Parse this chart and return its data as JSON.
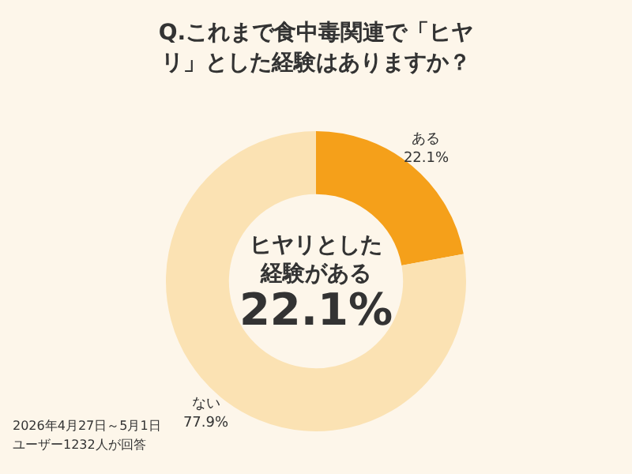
{
  "chart_data": {
    "type": "donut",
    "title": "Q.これまで食中毒関連で「ヒヤリ」とした経験はありますか？",
    "categories": [
      "ある",
      "ない"
    ],
    "values": [
      22.1,
      77.9
    ],
    "colors": [
      "#f5a01a",
      "#fbe2b3"
    ],
    "value_labels": [
      "22.1%",
      "77.9%"
    ],
    "legend": false,
    "annotations": [
      "ヒヤリとした経験がある",
      "22.1%",
      "2026年4月27日～5月1日",
      "ユーザー1232人が回答"
    ]
  }
}
